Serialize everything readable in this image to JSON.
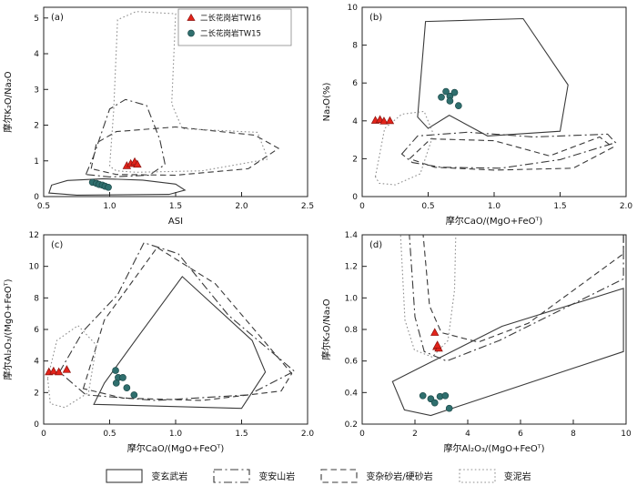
{
  "chart_data": {
    "type": "scatter",
    "description": "Four-panel geochemical source discrimination diagrams with rock-type fields and two granite sample series",
    "field_order": [
      "metabasalt",
      "metaandesite",
      "metagraywacke",
      "metapelite"
    ],
    "field_styles": {
      "metabasalt": {
        "label": "变玄武岩",
        "dash": "",
        "color": "#3a3a3a"
      },
      "metaandesite": {
        "label": "变安山岩",
        "dash": "9 3.5 2 3.5",
        "color": "#3a3a3a"
      },
      "metagraywacke": {
        "label": "变杂砂岩/硬砂岩",
        "dash": "6.5 4",
        "color": "#3a3a3a"
      },
      "metapelite": {
        "label": "变泥岩",
        "dash": "1.6 2.6",
        "color": "#8f8f8f"
      }
    },
    "series_styles": {
      "tw16": {
        "label": "二长花岗岩TW16",
        "marker": "triangle",
        "fill": "#e2231a",
        "edge": "#8c1410"
      },
      "tw15": {
        "label": "二长花岗岩TW15",
        "marker": "circle",
        "fill": "#2f6f6e",
        "edge": "#1c4949"
      }
    },
    "panels": [
      {
        "id": "a",
        "label": "(a)",
        "xlabel": "ASI",
        "ylabel": "摩尔K₂O/Na₂O",
        "xlim": [
          0.5,
          2.5
        ],
        "ylim": [
          0,
          5.3
        ],
        "xticks": [
          0.5,
          1.0,
          1.5,
          2.0,
          2.5
        ],
        "xtick_labels": [
          "0.5",
          "1.0",
          "1.5",
          "2.0",
          "2.5"
        ],
        "yticks": [
          0,
          1,
          2,
          3,
          4,
          5
        ],
        "ytick_labels": [
          "0",
          "1",
          "2",
          "3",
          "4",
          "5"
        ],
        "has_point_legend": true,
        "fields": {
          "metabasalt": [
            [
              0.54,
              0.1
            ],
            [
              0.56,
              0.32
            ],
            [
              0.68,
              0.45
            ],
            [
              0.95,
              0.5
            ],
            [
              1.25,
              0.46
            ],
            [
              1.5,
              0.35
            ],
            [
              1.57,
              0.18
            ],
            [
              1.45,
              0.06
            ],
            [
              0.75,
              0.04
            ]
          ],
          "metaandesite": [
            [
              0.82,
              0.62
            ],
            [
              0.88,
              1.15
            ],
            [
              1.0,
              2.45
            ],
            [
              1.12,
              2.72
            ],
            [
              1.28,
              2.55
            ],
            [
              1.38,
              1.6
            ],
            [
              1.42,
              0.9
            ],
            [
              1.3,
              0.6
            ],
            [
              1.0,
              0.55
            ]
          ],
          "metagraywacke": [
            [
              0.86,
              0.78
            ],
            [
              0.9,
              1.5
            ],
            [
              1.05,
              1.82
            ],
            [
              1.5,
              1.95
            ],
            [
              2.1,
              1.72
            ],
            [
              2.28,
              1.35
            ],
            [
              2.05,
              0.78
            ],
            [
              1.5,
              0.6
            ],
            [
              1.05,
              0.62
            ]
          ],
          "metapelite": [
            [
              1.0,
              0.85
            ],
            [
              1.03,
              2.4
            ],
            [
              1.06,
              4.95
            ],
            [
              1.2,
              5.18
            ],
            [
              1.5,
              5.12
            ],
            [
              1.47,
              2.6
            ],
            [
              1.55,
              1.9
            ],
            [
              2.12,
              1.8
            ],
            [
              2.2,
              1.05
            ],
            [
              1.7,
              0.72
            ],
            [
              1.2,
              0.68
            ],
            [
              1.05,
              0.72
            ]
          ]
        },
        "series": {
          "tw16": [
            [
              1.13,
              0.86
            ],
            [
              1.16,
              0.92
            ],
            [
              1.19,
              0.97
            ],
            [
              1.21,
              0.9
            ]
          ],
          "tw15": [
            [
              0.87,
              0.4
            ],
            [
              0.9,
              0.37
            ],
            [
              0.92,
              0.34
            ],
            [
              0.945,
              0.32
            ],
            [
              0.965,
              0.29
            ],
            [
              0.99,
              0.26
            ]
          ]
        }
      },
      {
        "id": "b",
        "label": "(b)",
        "xlabel": "摩尔CaO/(MgO+FeOᵀ)",
        "ylabel": "Na₂O(%)",
        "xlim": [
          0,
          2.0
        ],
        "ylim": [
          0,
          10
        ],
        "xticks": [
          0,
          0.5,
          1.0,
          1.5,
          2.0
        ],
        "xtick_labels": [
          "0",
          "0.5",
          "1.0",
          "1.5",
          "2.0"
        ],
        "yticks": [
          0,
          2,
          4,
          6,
          8,
          10
        ],
        "ytick_labels": [
          "0",
          "2",
          "4",
          "6",
          "8",
          "10"
        ],
        "has_point_legend": false,
        "fields": {
          "metabasalt": [
            [
              0.42,
              4.2
            ],
            [
              0.48,
              9.25
            ],
            [
              1.22,
              9.4
            ],
            [
              1.56,
              5.9
            ],
            [
              1.5,
              3.45
            ],
            [
              0.95,
              3.2
            ],
            [
              0.66,
              4.3
            ],
            [
              0.5,
              3.6
            ]
          ],
          "metaandesite": [
            [
              0.3,
              2.25
            ],
            [
              0.42,
              3.2
            ],
            [
              0.8,
              3.4
            ],
            [
              1.3,
              3.15
            ],
            [
              1.86,
              3.3
            ],
            [
              1.92,
              2.85
            ],
            [
              1.5,
              1.95
            ],
            [
              1.05,
              1.5
            ],
            [
              0.6,
              1.55
            ],
            [
              0.38,
              1.8
            ]
          ],
          "metagraywacke": [
            [
              0.36,
              2.0
            ],
            [
              0.52,
              3.05
            ],
            [
              1.0,
              2.95
            ],
            [
              1.42,
              2.15
            ],
            [
              1.8,
              3.15
            ],
            [
              1.9,
              2.6
            ],
            [
              1.6,
              1.5
            ],
            [
              1.0,
              1.4
            ],
            [
              0.55,
              1.55
            ]
          ],
          "metapelite": [
            [
              0.1,
              1.05
            ],
            [
              0.17,
              3.6
            ],
            [
              0.3,
              4.35
            ],
            [
              0.47,
              4.5
            ],
            [
              0.54,
              3.3
            ],
            [
              0.44,
              1.2
            ],
            [
              0.25,
              0.62
            ],
            [
              0.13,
              0.7
            ]
          ]
        },
        "series": {
          "tw16": [
            [
              0.1,
              4.02
            ],
            [
              0.135,
              4.06
            ],
            [
              0.165,
              3.98
            ],
            [
              0.21,
              4.0
            ]
          ],
          "tw15": [
            [
              0.6,
              5.25
            ],
            [
              0.635,
              5.55
            ],
            [
              0.665,
              5.3
            ],
            [
              0.7,
              5.5
            ],
            [
              0.665,
              5.05
            ],
            [
              0.73,
              4.8
            ]
          ]
        }
      },
      {
        "id": "c",
        "label": "(c)",
        "xlabel": "摩尔CaO/(MgO+FeOᵀ)",
        "ylabel": "摩尔Al₂O₃/(MgO+FeOᵀ)",
        "xlim": [
          0,
          2.0
        ],
        "ylim": [
          0,
          12
        ],
        "xticks": [
          0,
          0.5,
          1.0,
          1.5,
          2.0
        ],
        "xtick_labels": [
          "0",
          "0.5",
          "1.0",
          "1.5",
          "2.0"
        ],
        "yticks": [
          0,
          2,
          4,
          6,
          8,
          10,
          12
        ],
        "ytick_labels": [
          "0",
          "2",
          "4",
          "6",
          "8",
          "10",
          "12"
        ],
        "has_point_legend": false,
        "fields": {
          "metabasalt": [
            [
              0.38,
              1.25
            ],
            [
              1.5,
              1.0
            ],
            [
              1.68,
              3.3
            ],
            [
              1.58,
              5.3
            ],
            [
              1.05,
              9.35
            ],
            [
              0.72,
              5.6
            ],
            [
              0.46,
              2.6
            ]
          ],
          "metaandesite": [
            [
              0.12,
              3.3
            ],
            [
              0.3,
              5.9
            ],
            [
              0.56,
              8.2
            ],
            [
              0.76,
              11.5
            ],
            [
              1.02,
              10.8
            ],
            [
              1.4,
              6.9
            ],
            [
              1.9,
              3.35
            ],
            [
              1.55,
              1.85
            ],
            [
              0.85,
              1.5
            ],
            [
              0.32,
              1.85
            ]
          ],
          "metagraywacke": [
            [
              0.3,
              2.25
            ],
            [
              0.46,
              6.6
            ],
            [
              0.86,
              11.2
            ],
            [
              1.3,
              8.9
            ],
            [
              1.88,
              3.2
            ],
            [
              1.8,
              2.1
            ],
            [
              1.2,
              1.5
            ],
            [
              0.6,
              1.65
            ]
          ],
          "metapelite": [
            [
              0.03,
              2.9
            ],
            [
              0.1,
              5.3
            ],
            [
              0.26,
              6.25
            ],
            [
              0.4,
              5.0
            ],
            [
              0.34,
              2.0
            ],
            [
              0.16,
              1.05
            ],
            [
              0.05,
              1.3
            ]
          ]
        },
        "series": {
          "tw16": [
            [
              0.04,
              3.3
            ],
            [
              0.075,
              3.35
            ],
            [
              0.115,
              3.3
            ],
            [
              0.175,
              3.45
            ]
          ],
          "tw15": [
            [
              0.545,
              3.4
            ],
            [
              0.565,
              2.95
            ],
            [
              0.55,
              2.6
            ],
            [
              0.6,
              2.95
            ],
            [
              0.63,
              2.3
            ],
            [
              0.685,
              1.85
            ]
          ]
        }
      },
      {
        "id": "d",
        "label": "(d)",
        "xlabel": "摩尔Al₂O₃/(MgO+FeOᵀ)",
        "ylabel": "摩尔K₂O/Na₂O",
        "xlim": [
          0,
          10
        ],
        "ylim": [
          0.2,
          1.4
        ],
        "xticks": [
          0,
          2,
          4,
          6,
          8,
          10
        ],
        "xtick_labels": [
          "0",
          "2",
          "4",
          "6",
          "8",
          "10"
        ],
        "yticks": [
          0.2,
          0.4,
          0.6,
          0.8,
          1.0,
          1.2,
          1.4
        ],
        "ytick_labels": [
          "0.2",
          "0.4",
          "0.6",
          "0.8",
          "1.0",
          "1.2",
          "1.4"
        ],
        "has_point_legend": false,
        "fields": {
          "metabasalt": [
            [
              1.15,
              0.47
            ],
            [
              1.6,
              0.29
            ],
            [
              2.6,
              0.255
            ],
            [
              9.9,
              0.66
            ],
            [
              9.9,
              1.06
            ],
            [
              5.3,
              0.82
            ],
            [
              2.1,
              0.55
            ]
          ],
          "metaandesite": [
            [
              1.78,
              1.42
            ],
            [
              2.0,
              0.88
            ],
            [
              2.35,
              0.66
            ],
            [
              3.2,
              0.6
            ],
            [
              5.2,
              0.73
            ],
            [
              9.9,
              1.12
            ],
            [
              9.9,
              1.42
            ]
          ],
          "metagraywacke": [
            [
              2.3,
              1.42
            ],
            [
              2.55,
              0.95
            ],
            [
              3.0,
              0.78
            ],
            [
              4.4,
              0.72
            ],
            [
              6.3,
              0.84
            ],
            [
              9.9,
              1.28
            ],
            [
              9.9,
              1.42
            ]
          ],
          "metapelite": [
            [
              1.45,
              1.42
            ],
            [
              1.62,
              0.86
            ],
            [
              1.98,
              0.67
            ],
            [
              2.65,
              0.625
            ],
            [
              3.25,
              0.73
            ],
            [
              3.5,
              1.05
            ],
            [
              3.55,
              1.42
            ]
          ]
        },
        "series": {
          "tw16": [
            [
              2.75,
              0.78
            ],
            [
              2.82,
              0.69
            ],
            [
              2.9,
              0.68
            ],
            [
              2.85,
              0.7
            ]
          ],
          "tw15": [
            [
              2.3,
              0.38
            ],
            [
              2.6,
              0.36
            ],
            [
              2.95,
              0.375
            ],
            [
              3.15,
              0.38
            ],
            [
              3.3,
              0.3
            ],
            [
              2.75,
              0.335
            ]
          ]
        }
      }
    ]
  }
}
